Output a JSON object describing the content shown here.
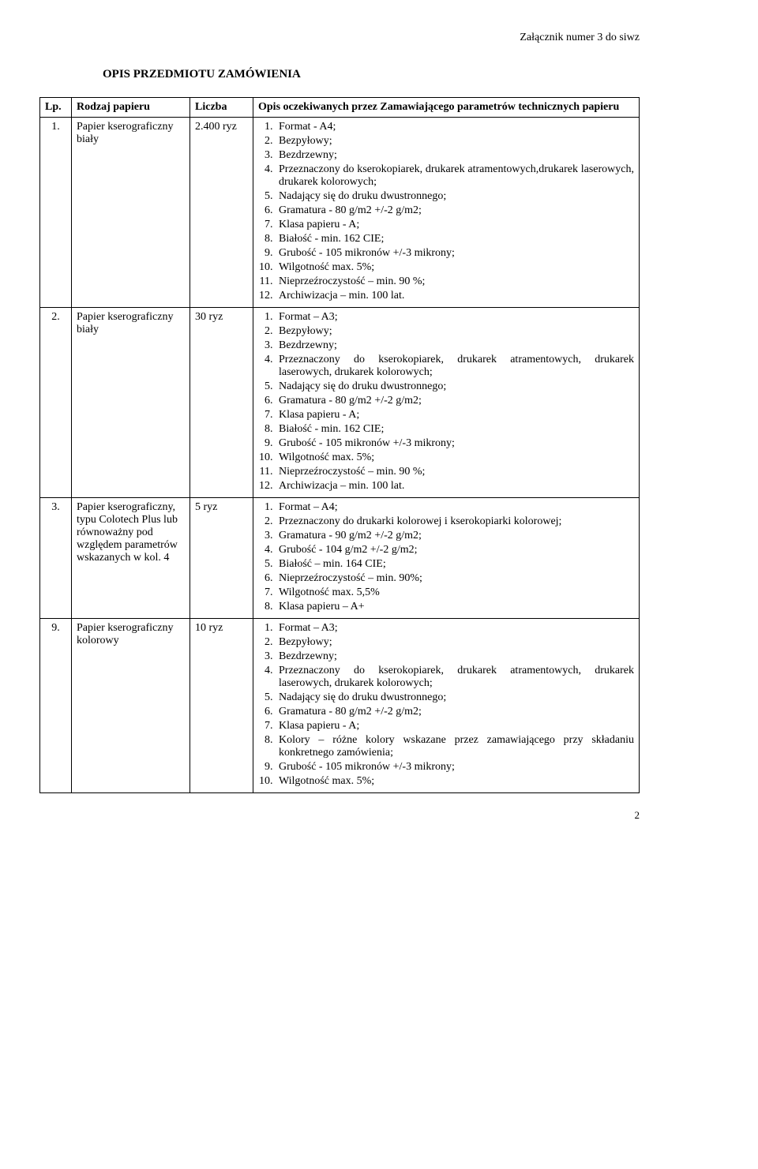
{
  "attachment_label": "Załącznik numer 3 do siwz",
  "title": "OPIS PRZEDMIOTU ZAMÓWIENIA",
  "page_number": "2",
  "columns": {
    "lp": "Lp.",
    "rodzaj": "Rodzaj papieru",
    "liczba": "Liczba",
    "opis": "Opis oczekiwanych przez Zamawiającego parametrów technicznych papieru"
  },
  "rows": [
    {
      "lp": "1.",
      "rodzaj": "Papier kserograficzny biały",
      "liczba": "2.400 ryz",
      "spec": [
        "Format - A4;",
        "Bezpyłowy;",
        "Bezdrzewny;",
        "Przeznaczony do kserokopiarek, drukarek atramentowych,drukarek laserowych, drukarek kolorowych;",
        "Nadający się do druku dwustronnego;",
        "Gramatura - 80 g/m2 +/-2 g/m2;",
        "Klasa papieru - A;",
        "Białość - min. 162 CIE;",
        "Grubość - 105 mikronów +/-3 mikrony;",
        "Wilgotność max. 5%;",
        "Nieprzeźroczystość – min. 90 %;",
        "Archiwizacja – min. 100 lat."
      ]
    },
    {
      "lp": "2.",
      "rodzaj": "Papier kserograficzny biały",
      "liczba": "30 ryz",
      "spec": [
        "Format – A3;",
        "Bezpyłowy;",
        "Bezdrzewny;",
        "Przeznaczony do kserokopiarek, drukarek atramentowych, drukarek laserowych, drukarek kolorowych;",
        "Nadający się do druku dwustronnego;",
        "Gramatura - 80 g/m2 +/-2 g/m2;",
        "Klasa papieru - A;",
        "Białość - min. 162 CIE;",
        "Grubość - 105 mikronów +/-3 mikrony;",
        "Wilgotność max. 5%;",
        "Nieprzeźroczystość – min. 90 %;",
        "Archiwizacja – min. 100 lat."
      ]
    },
    {
      "lp": "3.",
      "rodzaj": "Papier kserograficzny, typu Colotech Plus lub równoważny pod względem parametrów wskazanych w kol. 4",
      "liczba": "5 ryz",
      "spec": [
        "Format – A4;",
        "Przeznaczony do drukarki kolorowej i kserokopiarki kolorowej;",
        "Gramatura - 90 g/m2 +/-2 g/m2;",
        "Grubość - 104 g/m2 +/-2 g/m2;",
        "Białość – min. 164 CIE;",
        "Nieprzeźroczystość – min. 90%;",
        "Wilgotność max. 5,5%",
        "Klasa papieru – A+"
      ]
    },
    {
      "lp": "9.",
      "rodzaj": "Papier kserograficzny kolorowy",
      "liczba": "10 ryz",
      "spec": [
        "Format – A3;",
        "Bezpyłowy;",
        "Bezdrzewny;",
        "Przeznaczony do kserokopiarek, drukarek atramentowych, drukarek laserowych, drukarek kolorowych;",
        "Nadający się do druku dwustronnego;",
        "Gramatura - 80 g/m2 +/-2 g/m2;",
        "Klasa papieru - A;",
        "Kolory – różne kolory wskazane przez zamawiającego przy składaniu konkretnego zamówienia;",
        "Grubość - 105 mikronów +/-3 mikrony;",
        "Wilgotność max. 5%;"
      ]
    }
  ]
}
